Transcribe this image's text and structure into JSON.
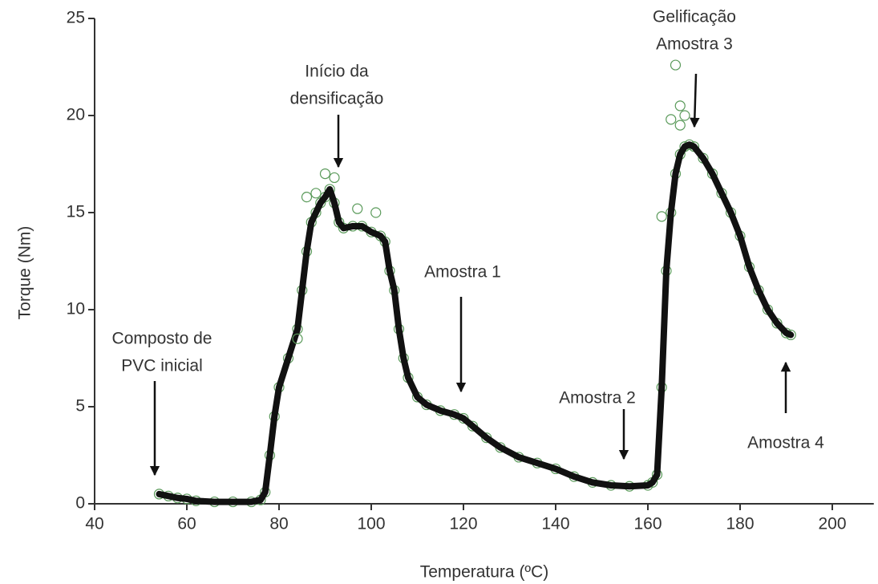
{
  "chart_data": {
    "type": "line",
    "xlabel": "Temperatura (ºC)",
    "ylabel": "Torque (Nm)",
    "xlim": [
      40,
      209
    ],
    "ylim": [
      0,
      25
    ],
    "xticks": [
      40,
      60,
      80,
      100,
      120,
      140,
      160,
      180,
      200
    ],
    "yticks": [
      0,
      5,
      10,
      15,
      20,
      25
    ],
    "series": [
      {
        "color": "#111111",
        "marker_color": "#5a9a5a",
        "x": [
          54,
          56,
          58,
          60,
          62,
          66,
          70,
          74,
          76,
          77,
          78,
          79,
          80,
          82,
          84,
          85,
          86,
          87,
          88,
          89,
          90,
          91,
          92,
          93,
          94,
          96,
          98,
          100,
          102,
          103,
          104,
          105,
          106,
          107,
          108,
          110,
          112,
          115,
          118,
          120,
          122,
          125,
          128,
          132,
          136,
          140,
          144,
          148,
          152,
          156,
          160,
          161,
          162,
          163,
          164,
          165,
          166,
          167,
          168,
          169,
          170,
          172,
          174,
          176,
          178,
          180,
          182,
          184,
          186,
          188,
          190,
          191
        ],
        "values": [
          0.5,
          0.4,
          0.3,
          0.25,
          0.15,
          0.1,
          0.1,
          0.1,
          0.2,
          0.6,
          2.5,
          4.5,
          6,
          7.5,
          9,
          11,
          13,
          14.5,
          15,
          15.5,
          15.8,
          16.2,
          15.5,
          14.5,
          14.2,
          14.3,
          14.3,
          14,
          13.8,
          13.5,
          12,
          11,
          9,
          7.5,
          6.5,
          5.5,
          5.1,
          4.8,
          4.6,
          4.4,
          4.0,
          3.4,
          2.9,
          2.4,
          2.1,
          1.8,
          1.4,
          1.1,
          0.95,
          0.9,
          0.95,
          1.1,
          1.5,
          6,
          12,
          15,
          17,
          18,
          18.4,
          18.5,
          18.4,
          17.8,
          17,
          16,
          15,
          13.8,
          12.2,
          11,
          10,
          9.3,
          8.8,
          8.7
        ]
      },
      {
        "color": "#5a9a5a",
        "type": "scatter",
        "x": [
          166,
          167,
          168,
          165,
          90,
          92,
          86,
          97,
          101,
          163,
          167,
          84,
          88
        ],
        "values": [
          22.6,
          20.5,
          20,
          19.8,
          17,
          16.8,
          15.8,
          15.2,
          15,
          14.8,
          19.5,
          8.5,
          16
        ]
      }
    ],
    "annotations": [
      {
        "lines": [
          "Composto de",
          "PVC inicial"
        ]
      },
      {
        "lines": [
          "Início da",
          "densificação"
        ]
      },
      {
        "lines": [
          "Amostra 1"
        ]
      },
      {
        "lines": [
          "Amostra 2"
        ]
      },
      {
        "lines": [
          "Gelificação",
          "Amostra 3"
        ]
      },
      {
        "lines": [
          "Amostra 4"
        ]
      }
    ]
  }
}
